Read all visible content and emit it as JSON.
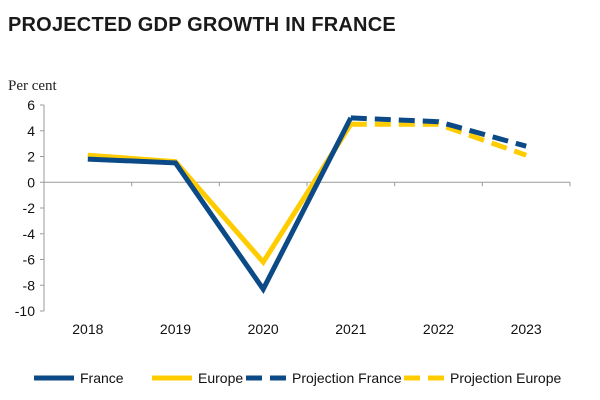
{
  "colors": {
    "france": "#0B4A86",
    "europe": "#FFCC00",
    "axis": "#9a9a9a"
  },
  "chart_data": {
    "type": "line",
    "title": "PROJECTED GDP GROWTH IN FRANCE",
    "ylabel": "Per cent",
    "xlabel": "",
    "categories": [
      "2018",
      "2019",
      "2020",
      "2021",
      "2022",
      "2023"
    ],
    "yticks": [
      "6",
      "4",
      "2",
      "0",
      "-2",
      "-4",
      "-6",
      "-8",
      "-10"
    ],
    "ylim": [
      -10,
      6
    ],
    "grid": false,
    "legend_position": "bottom",
    "series": [
      {
        "name": "France",
        "style": "solid",
        "color_key": "france",
        "x": [
          "2018",
          "2019",
          "2020",
          "2021"
        ],
        "values": [
          1.8,
          1.5,
          -8.3,
          5.0
        ]
      },
      {
        "name": "Europe",
        "style": "solid",
        "color_key": "europe",
        "x": [
          "2018",
          "2019",
          "2020",
          "2021"
        ],
        "values": [
          2.1,
          1.6,
          -6.2,
          4.5
        ]
      },
      {
        "name": "Projection France",
        "style": "dashed",
        "color_key": "france",
        "x": [
          "2021",
          "2022",
          "2023"
        ],
        "values": [
          5.0,
          4.7,
          2.8
        ]
      },
      {
        "name": "Projection Europe",
        "style": "dashed",
        "color_key": "europe",
        "x": [
          "2021",
          "2022",
          "2023"
        ],
        "values": [
          4.5,
          4.5,
          2.1
        ]
      }
    ]
  }
}
